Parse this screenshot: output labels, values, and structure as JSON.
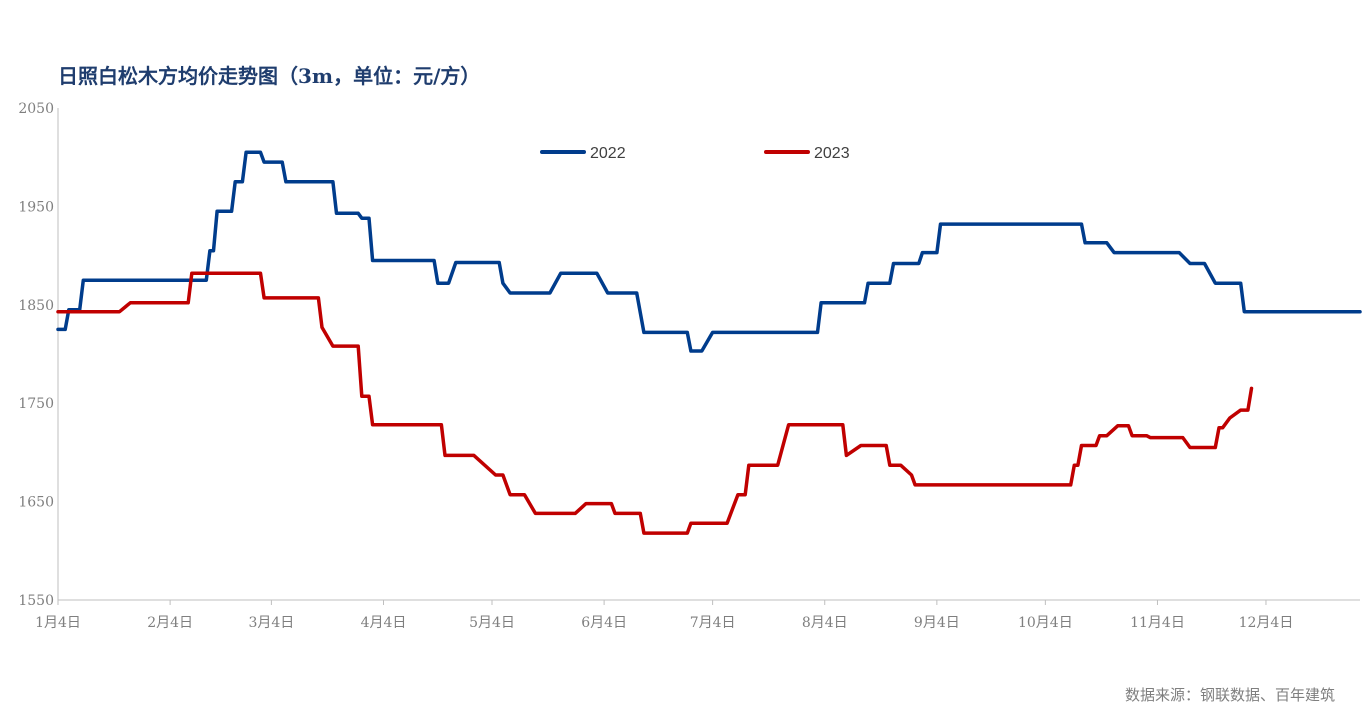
{
  "title": "日照白松木方均价走势图（3m，单位：元/方）",
  "source": "数据来源：钢联数据、百年建筑",
  "chart_data": {
    "type": "line",
    "title": "日照白松木方均价走势图（3m，单位：元/方）",
    "xlabel": "",
    "ylabel": "",
    "ylim": [
      1550,
      2050
    ],
    "yticks": [
      1550,
      1650,
      1750,
      1850,
      1950,
      2050
    ],
    "grid": false,
    "legend_position": "top",
    "x_tick_labels": [
      "1月4日",
      "2月4日",
      "3月4日",
      "4月4日",
      "5月4日",
      "6月4日",
      "7月4日",
      "8月4日",
      "9月4日",
      "10月4日",
      "11月4日",
      "12月4日"
    ],
    "x_domain_days": [
      0,
      360
    ],
    "series": [
      {
        "name": "2022",
        "color": "#003c8c",
        "points": [
          [
            0,
            1825
          ],
          [
            2,
            1825
          ],
          [
            3,
            1845
          ],
          [
            6,
            1845
          ],
          [
            7,
            1875
          ],
          [
            41,
            1875
          ],
          [
            42,
            1905
          ],
          [
            43,
            1905
          ],
          [
            44,
            1945
          ],
          [
            48,
            1945
          ],
          [
            49,
            1975
          ],
          [
            51,
            1975
          ],
          [
            52,
            2005
          ],
          [
            56,
            2005
          ],
          [
            57,
            1995
          ],
          [
            62,
            1995
          ],
          [
            63,
            1975
          ],
          [
            76,
            1975
          ],
          [
            77,
            1943
          ],
          [
            83,
            1943
          ],
          [
            84,
            1938
          ],
          [
            86,
            1938
          ],
          [
            87,
            1895
          ],
          [
            104,
            1895
          ],
          [
            105,
            1872
          ],
          [
            108,
            1872
          ],
          [
            110,
            1893
          ],
          [
            122,
            1893
          ],
          [
            123,
            1872
          ],
          [
            125,
            1862
          ],
          [
            136,
            1862
          ],
          [
            139,
            1882
          ],
          [
            149,
            1882
          ],
          [
            152,
            1862
          ],
          [
            160,
            1862
          ],
          [
            162,
            1822
          ],
          [
            174,
            1822
          ],
          [
            175,
            1803
          ],
          [
            178,
            1803
          ],
          [
            181,
            1822
          ],
          [
            210,
            1822
          ],
          [
            211,
            1852
          ],
          [
            223,
            1852
          ],
          [
            224,
            1872
          ],
          [
            230,
            1872
          ],
          [
            231,
            1892
          ],
          [
            238,
            1892
          ],
          [
            239,
            1903
          ],
          [
            243,
            1903
          ],
          [
            244,
            1932
          ],
          [
            283,
            1932
          ],
          [
            284,
            1913
          ],
          [
            290,
            1913
          ],
          [
            292,
            1903
          ],
          [
            310,
            1903
          ],
          [
            313,
            1892
          ],
          [
            317,
            1892
          ],
          [
            320,
            1872
          ],
          [
            327,
            1872
          ],
          [
            328,
            1843
          ],
          [
            360,
            1843
          ]
        ]
      },
      {
        "name": "2023",
        "color": "#c00000",
        "points": [
          [
            0,
            1843
          ],
          [
            17,
            1843
          ],
          [
            20,
            1852
          ],
          [
            36,
            1852
          ],
          [
            37,
            1882
          ],
          [
            56,
            1882
          ],
          [
            57,
            1857
          ],
          [
            72,
            1857
          ],
          [
            73,
            1827
          ],
          [
            76,
            1808
          ],
          [
            83,
            1808
          ],
          [
            84,
            1757
          ],
          [
            86,
            1757
          ],
          [
            87,
            1728
          ],
          [
            106,
            1728
          ],
          [
            107,
            1697
          ],
          [
            115,
            1697
          ],
          [
            121,
            1677
          ],
          [
            123,
            1677
          ],
          [
            125,
            1657
          ],
          [
            129,
            1657
          ],
          [
            132,
            1638
          ],
          [
            143,
            1638
          ],
          [
            146,
            1648
          ],
          [
            153,
            1648
          ],
          [
            154,
            1638
          ],
          [
            161,
            1638
          ],
          [
            162,
            1618
          ],
          [
            174,
            1618
          ],
          [
            175,
            1628
          ],
          [
            185,
            1628
          ],
          [
            188,
            1657
          ],
          [
            190,
            1657
          ],
          [
            191,
            1687
          ],
          [
            199,
            1687
          ],
          [
            202,
            1728
          ],
          [
            217,
            1728
          ],
          [
            218,
            1697
          ],
          [
            222,
            1707
          ],
          [
            229,
            1707
          ],
          [
            230,
            1687
          ],
          [
            233,
            1687
          ],
          [
            236,
            1677
          ],
          [
            237,
            1667
          ],
          [
            280,
            1667
          ],
          [
            281,
            1687
          ],
          [
            282,
            1687
          ],
          [
            283,
            1707
          ],
          [
            287,
            1707
          ],
          [
            288,
            1717
          ],
          [
            290,
            1717
          ],
          [
            293,
            1727
          ],
          [
            296,
            1727
          ],
          [
            297,
            1717
          ],
          [
            301,
            1717
          ],
          [
            302,
            1715
          ],
          [
            311,
            1715
          ],
          [
            313,
            1705
          ],
          [
            320,
            1705
          ],
          [
            321,
            1725
          ],
          [
            322,
            1725
          ],
          [
            324,
            1735
          ],
          [
            327,
            1743
          ],
          [
            329,
            1743
          ],
          [
            330,
            1765
          ]
        ]
      }
    ]
  }
}
